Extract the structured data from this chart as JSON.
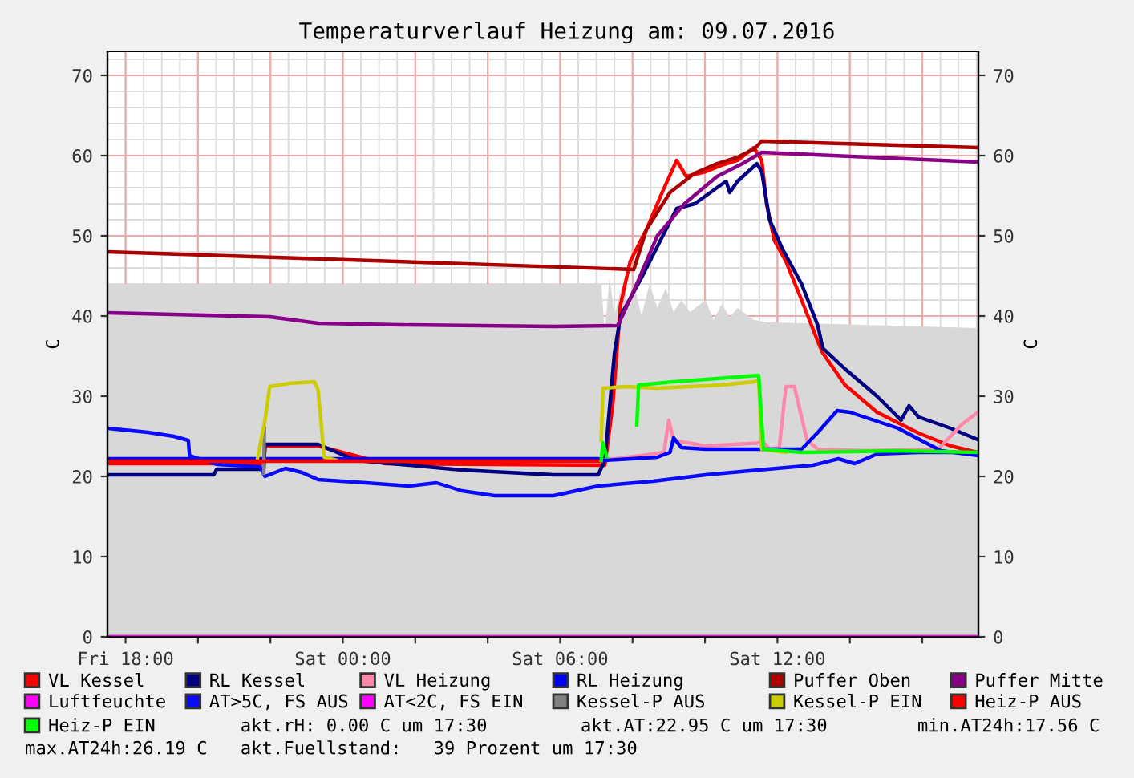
{
  "chart_data": {
    "type": "line",
    "title": "Temperaturverlauf Heizung am: 09.07.2016",
    "ylabel": "C",
    "y2label": "C",
    "xlim": [
      "2016-07-08T17:30",
      "2016-07-09T17:33"
    ],
    "ylim": [
      0,
      73
    ],
    "y2lim": [
      0,
      73
    ],
    "xticks": [
      {
        "value": "2016-07-08T18:00",
        "label": "Fri 18:00"
      },
      {
        "value": "2016-07-08T20:00",
        "label": null
      },
      {
        "value": "2016-07-08T22:00",
        "label": null
      },
      {
        "value": "2016-07-09T00:00",
        "label": "Sat 00:00"
      },
      {
        "value": "2016-07-09T02:00",
        "label": null
      },
      {
        "value": "2016-07-09T04:00",
        "label": null
      },
      {
        "value": "2016-07-09T06:00",
        "label": "Sat 06:00"
      },
      {
        "value": "2016-07-09T08:00",
        "label": null
      },
      {
        "value": "2016-07-09T10:00",
        "label": null
      },
      {
        "value": "2016-07-09T12:00",
        "label": "Sat 12:00"
      },
      {
        "value": "2016-07-09T14:00",
        "label": null
      },
      {
        "value": "2016-07-09T16:00",
        "label": null
      }
    ],
    "yticks": [
      0,
      10,
      20,
      30,
      40,
      50,
      60,
      70
    ],
    "y2ticks": [
      0,
      10,
      20,
      30,
      40,
      50,
      60,
      70
    ],
    "grid": true,
    "legend": "bottom",
    "marker": "none",
    "line_style": "solid",
    "annotations": [
      "akt.rH: 0.00 C um 17:30",
      "akt.AT:22.95 C um 17:30",
      "min.AT24h:17.56 C",
      "max.AT24h:26.19 C",
      "akt.Fuellstand:   39 Prozent um 17:30"
    ],
    "series": [
      {
        "type": "area",
        "color": "#d8d8d8",
        "x": [
          "2016-07-08T17:31",
          "2016-07-09T07:00",
          "2016-07-09T07:08",
          "2016-07-09T07:14",
          "2016-07-09T07:22",
          "2016-07-09T07:30",
          "2016-07-09T07:43",
          "2016-07-09T07:54",
          "2016-07-09T08:05",
          "2016-07-09T08:15",
          "2016-07-09T08:28",
          "2016-07-09T08:41",
          "2016-07-09T08:55",
          "2016-07-09T09:08",
          "2016-07-09T09:21",
          "2016-07-09T09:35",
          "2016-07-09T10:01",
          "2016-07-09T10:14",
          "2016-07-09T10:28",
          "2016-07-09T10:41",
          "2016-07-09T10:54",
          "2016-07-09T11:21",
          "2016-07-09T11:47",
          "2016-07-09T13:34",
          "2016-07-09T17:32"
        ],
        "values": [
          44,
          44,
          44,
          38,
          45,
          40,
          44,
          41,
          43,
          40,
          44,
          41,
          43.5,
          40.5,
          42,
          40.5,
          42,
          39.5,
          41.5,
          39.8,
          41,
          39.5,
          39.2,
          39,
          38.5
        ]
      },
      {
        "name": "VL Kessel",
        "color": "#ff0000",
        "x": [
          "2016-07-08T17:31",
          "2016-07-08T21:49",
          "2016-07-08T21:51",
          "2016-07-08T23:19",
          "2016-07-09T01:10",
          "2016-07-09T07:08",
          "2016-07-09T07:14",
          "2016-07-09T07:27",
          "2016-07-09T07:40",
          "2016-07-09T07:56",
          "2016-07-09T08:23",
          "2016-07-09T08:49",
          "2016-07-09T09:13",
          "2016-07-09T09:29",
          "2016-07-09T10:01",
          "2016-07-09T10:28",
          "2016-07-09T10:54",
          "2016-07-09T11:21",
          "2016-07-09T11:34",
          "2016-07-09T11:42",
          "2016-07-09T11:55",
          "2016-07-09T12:14",
          "2016-07-09T12:40",
          "2016-07-09T13:07",
          "2016-07-09T13:15",
          "2016-07-09T13:52",
          "2016-07-09T14:45",
          "2016-07-09T15:54",
          "2016-07-09T16:47",
          "2016-07-09T17:32"
        ],
        "values": [
          21.6,
          21.6,
          23.8,
          23.8,
          21.6,
          21.4,
          21.4,
          28.8,
          41.4,
          46.8,
          50.8,
          55.4,
          59.4,
          57.4,
          58,
          58.8,
          59.4,
          61,
          59.4,
          54,
          49.4,
          46.8,
          42,
          36.8,
          35.4,
          31.4,
          28,
          25.4,
          23.8,
          23
        ]
      },
      {
        "name": "RL Kessel",
        "color": "#000080",
        "x": [
          "2016-07-08T17:31",
          "2016-07-08T20:26",
          "2016-07-08T20:31",
          "2016-07-08T21:49",
          "2016-07-08T21:51",
          "2016-07-08T23:19",
          "2016-07-09T00:22",
          "2016-07-09T03:17",
          "2016-07-09T05:49",
          "2016-07-09T07:03",
          "2016-07-09T07:14",
          "2016-07-09T07:30",
          "2016-07-09T07:40",
          "2016-07-09T08:15",
          "2016-07-09T09:13",
          "2016-07-09T09:43",
          "2016-07-09T10:20",
          "2016-07-09T10:35",
          "2016-07-09T10:41",
          "2016-07-09T10:54",
          "2016-07-09T11:26",
          "2016-07-09T11:34",
          "2016-07-09T11:47",
          "2016-07-09T12:08",
          "2016-07-09T12:40",
          "2016-07-09T13:07",
          "2016-07-09T13:15",
          "2016-07-09T13:52",
          "2016-07-09T14:45",
          "2016-07-09T15:25",
          "2016-07-09T15:38",
          "2016-07-09T15:54",
          "2016-07-09T16:47",
          "2016-07-09T17:32"
        ],
        "values": [
          20.2,
          20.2,
          20.9,
          20.9,
          24,
          24,
          22,
          20.8,
          20.2,
          20.2,
          22,
          35.4,
          40,
          44.8,
          53.4,
          54,
          56,
          56.8,
          55.4,
          56.8,
          59,
          58,
          52,
          48.4,
          44,
          38.8,
          36,
          33.4,
          30,
          27,
          28.8,
          27.4,
          26,
          24.6
        ]
      },
      {
        "name": "VL Heizung",
        "color": "#ff88aa",
        "x": [
          "2016-07-09T07:03",
          "2016-07-09T08:15",
          "2016-07-09T08:52",
          "2016-07-09T09:00",
          "2016-07-09T09:08",
          "2016-07-09T10:01",
          "2016-07-09T11:37",
          "2016-07-09T11:47",
          "2016-07-09T12:03",
          "2016-07-09T12:14",
          "2016-07-09T12:28",
          "2016-07-09T12:49",
          "2016-07-09T13:07",
          "2016-07-09T14:26",
          "2016-07-09T16:26",
          "2016-07-09T17:06",
          "2016-07-09T17:32"
        ],
        "values": [
          22,
          22.6,
          23,
          27,
          24.5,
          23.8,
          24.2,
          23.4,
          23.6,
          31.2,
          31.2,
          24.5,
          23.4,
          23.2,
          23.4,
          26.5,
          28
        ]
      },
      {
        "name": "RL Heizung",
        "color": "#0000ff",
        "x": [
          "2016-07-08T17:31",
          "2016-07-09T07:03",
          "2016-07-09T07:14",
          "2016-07-09T08:41",
          "2016-07-09T09:02",
          "2016-07-09T09:08",
          "2016-07-09T09:21",
          "2016-07-09T10:01",
          "2016-07-09T12:40",
          "2016-07-09T13:07",
          "2016-07-09T13:39",
          "2016-07-09T14:00",
          "2016-07-09T15:20",
          "2016-07-09T16:31",
          "2016-07-09T17:32"
        ],
        "values": [
          22.2,
          22.2,
          22,
          22.4,
          23,
          24.8,
          23.6,
          23.4,
          23.4,
          25.5,
          28.2,
          28,
          26,
          23.2,
          22.6
        ]
      },
      {
        "name": "Puffer Oben",
        "color": "#aa0000",
        "x": [
          "2016-07-08T17:31",
          "2016-07-09T08:02",
          "2016-07-09T08:23",
          "2016-07-09T09:02",
          "2016-07-09T09:43",
          "2016-07-09T10:20",
          "2016-07-09T10:54",
          "2016-07-09T11:21",
          "2016-07-09T11:34",
          "2016-07-09T17:32"
        ],
        "values": [
          48.0,
          45.8,
          50.8,
          55.4,
          57.8,
          59.0,
          59.8,
          60.8,
          61.8,
          61.0
        ]
      },
      {
        "name": "Puffer Mitte",
        "color": "#880088",
        "x": [
          "2016-07-08T17:31",
          "2016-07-08T21:59",
          "2016-07-08T23:19",
          "2016-07-09T01:37",
          "2016-07-09T05:49",
          "2016-07-09T07:35",
          "2016-07-09T07:43",
          "2016-07-09T08:07",
          "2016-07-09T08:41",
          "2016-07-09T09:26",
          "2016-07-09T10:20",
          "2016-07-09T11:02",
          "2016-07-09T11:34",
          "2016-07-09T17:32"
        ],
        "values": [
          40.4,
          39.9,
          39.1,
          38.9,
          38.7,
          38.8,
          40,
          44,
          50,
          54,
          57.4,
          59,
          60.4,
          59.2
        ]
      },
      {
        "name": "Luftfeuchte",
        "color": "#ff00ff",
        "x": [
          "2016-07-08T17:31",
          "2016-07-09T17:32"
        ],
        "values": [
          0,
          0
        ]
      },
      {
        "name": "AT>5C, FS AUS",
        "color": "#0a0aff",
        "x": [
          "2016-07-08T17:31",
          "2016-07-08T18:37",
          "2016-07-08T19:20",
          "2016-07-08T19:44",
          "2016-07-08T19:46",
          "2016-07-08T20:31",
          "2016-07-08T21:43",
          "2016-07-08T21:51",
          "2016-07-08T22:25",
          "2016-07-08T22:52",
          "2016-07-08T23:19",
          "2016-07-09T00:38",
          "2016-07-09T01:50",
          "2016-07-09T02:35",
          "2016-07-09T03:17",
          "2016-07-09T04:11",
          "2016-07-09T05:49",
          "2016-07-09T07:03",
          "2016-07-09T08:34",
          "2016-07-09T10:01",
          "2016-07-09T11:29",
          "2016-07-09T12:59",
          "2016-07-09T13:41",
          "2016-07-09T14:08",
          "2016-07-09T14:45",
          "2016-07-09T15:54",
          "2016-07-09T17:32"
        ],
        "values": [
          26,
          25.5,
          25,
          24.5,
          22.6,
          21.5,
          21.2,
          20,
          21,
          20.5,
          19.6,
          19.2,
          18.8,
          19.2,
          18.2,
          17.6,
          17.6,
          18.8,
          19.4,
          20.2,
          20.8,
          21.4,
          22.2,
          21.6,
          22.8,
          23,
          23
        ]
      },
      {
        "name": "AT<2C, FS EIN",
        "color": "#ff00ff",
        "x": [
          "2016-07-08T17:31",
          "2016-07-09T17:32"
        ],
        "values": [
          0,
          0
        ]
      },
      {
        "name": "Kessel-P AUS",
        "color": "#808080",
        "x": [
          "2016-07-08T21:49",
          "2016-07-08T21:50"
        ],
        "values": [
          20.4,
          26
        ]
      },
      {
        "name": "Kessel-P EIN",
        "color": "#cccc00",
        "x": [
          "2016-07-08T21:38",
          "2016-07-08T21:51",
          "2016-07-08T21:59",
          "2016-07-08T22:31",
          "2016-07-08T23:13",
          "2016-07-08T23:19",
          "2016-07-08T23:29",
          "2016-07-08T23:50",
          "2016-07-09T02:00",
          "2016-07-09T07:08",
          "2016-07-09T07:11",
          "2016-07-09T07:49",
          "2016-07-09T08:41",
          "2016-07-09T10:28",
          "2016-07-09T11:21",
          "2016-07-09T11:29",
          "2016-07-09T11:34",
          "2016-07-09T12:14"
        ],
        "values": [
          22,
          27,
          31.2,
          31.6,
          31.8,
          30.8,
          22.4,
          22,
          null,
          24.5,
          31,
          31.2,
          31,
          31.4,
          31.8,
          32,
          23.4,
          23
        ]
      },
      {
        "name": "Heiz-P AUS",
        "color": "#ff0000",
        "x": [
          "2016-07-08T17:31",
          "2016-07-09T07:08"
        ],
        "values": [
          21.9,
          21.9
        ]
      },
      {
        "name": "Heiz-P EIN",
        "color": "#00ff00",
        "x": [
          "2016-07-09T07:08",
          "2016-07-09T07:11",
          "2016-07-09T07:17",
          "2016-07-09T07:42",
          "2016-07-09T08:07",
          "2016-07-09T08:10",
          "2016-07-09T09:08",
          "2016-07-09T10:20",
          "2016-07-09T10:54",
          "2016-07-09T11:29",
          "2016-07-09T11:37",
          "2016-07-09T12:40",
          "2016-07-09T15:20",
          "2016-07-09T17:32"
        ],
        "values": [
          22,
          24.2,
          22.5,
          null,
          26.4,
          31.4,
          31.8,
          32.2,
          32.4,
          32.6,
          23.4,
          23,
          23.2,
          23
        ]
      }
    ]
  }
}
